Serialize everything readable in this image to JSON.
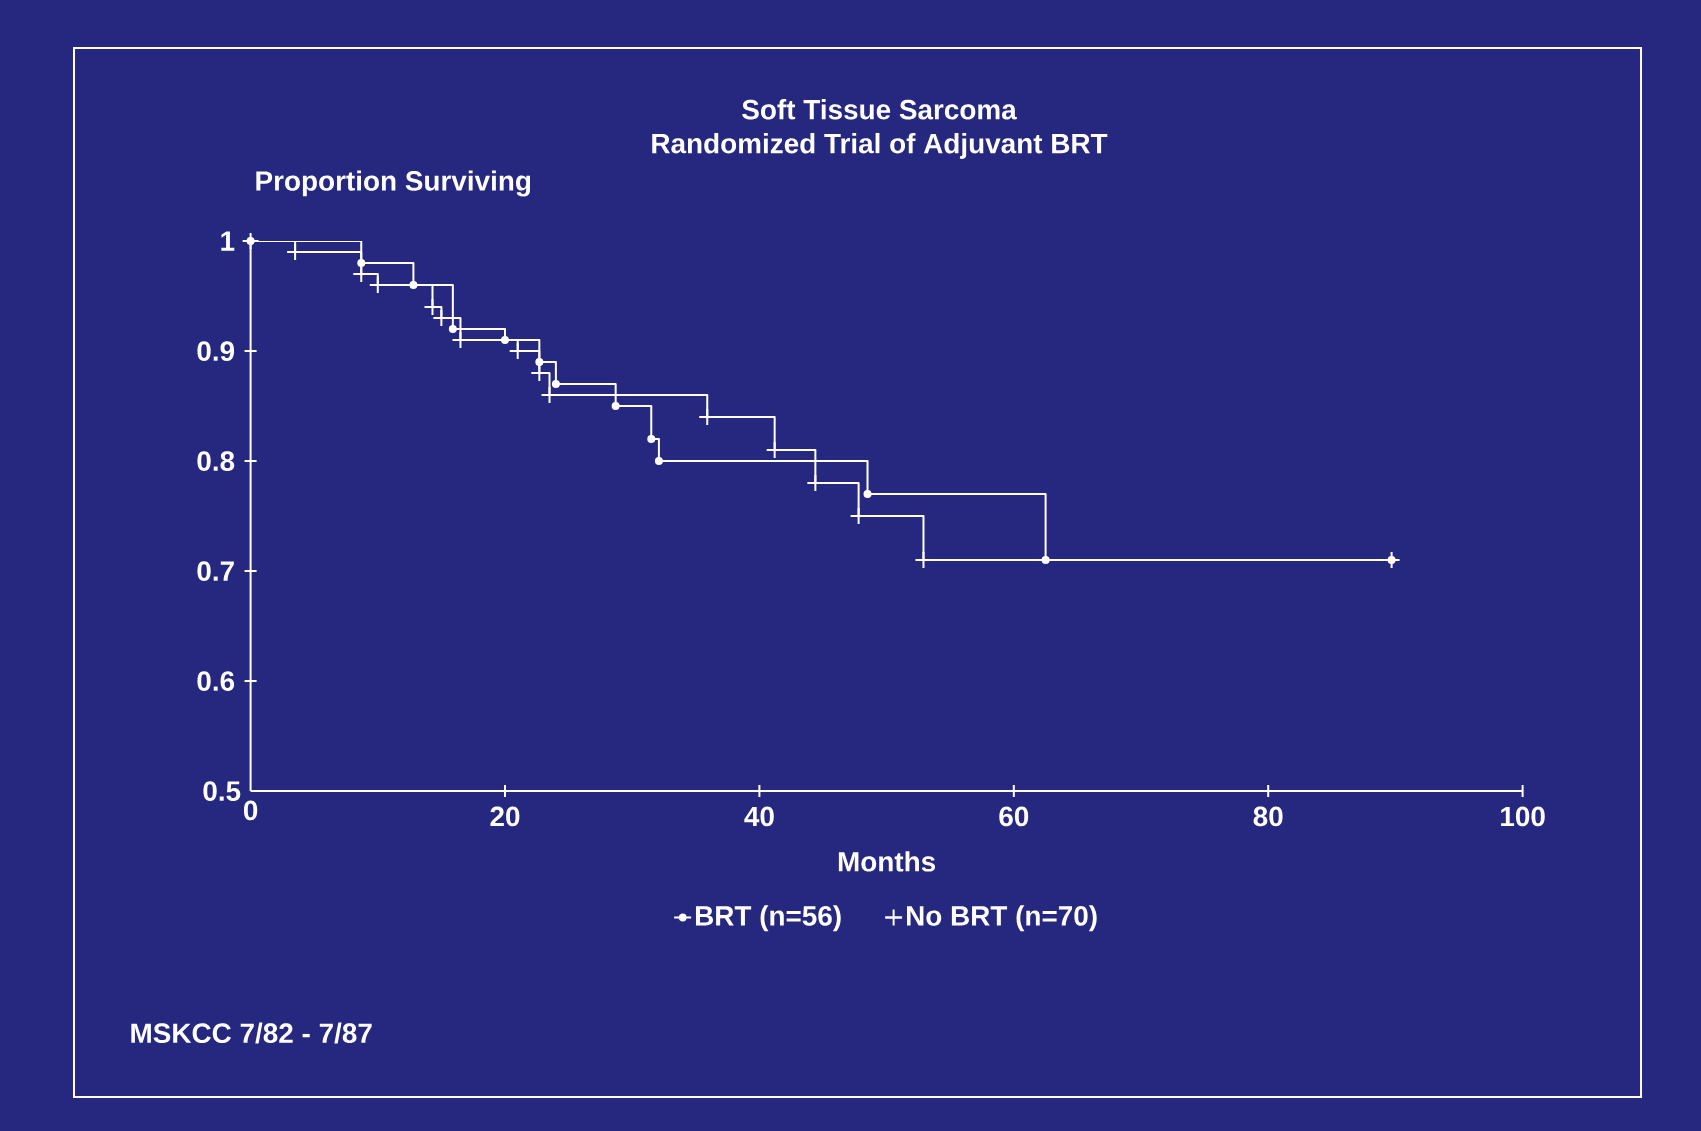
{
  "chart_data": {
    "type": "step",
    "title": "Soft Tissue Sarcoma",
    "subtitle": "Randomized Trial of Adjuvant BRT",
    "xlabel": "Months",
    "ylabel": "Proportion Surviving",
    "series": [
      {
        "name": "BRT (n=56)",
        "color": "#ffffff",
        "marker": "circle",
        "x": [
          0,
          8.7,
          12.8,
          15.9,
          20.0,
          22.7,
          24.0,
          28.7,
          31.5,
          32.1,
          48.5,
          62.5,
          89.7
        ],
        "values": [
          1.0,
          0.98,
          0.96,
          0.92,
          0.91,
          0.89,
          0.87,
          0.85,
          0.82,
          0.8,
          0.77,
          0.71,
          0.71
        ]
      },
      {
        "name": "No BRT (n=70)",
        "color": "#ffffff",
        "marker": "cross",
        "x": [
          0,
          3.5,
          8.7,
          10.0,
          14.3,
          15.0,
          16.5,
          21.0,
          22.7,
          23.5,
          35.9,
          41.2,
          44.4,
          47.8,
          52.9,
          89.7
        ],
        "values": [
          1.0,
          0.99,
          0.97,
          0.96,
          0.94,
          0.93,
          0.91,
          0.9,
          0.88,
          0.86,
          0.84,
          0.81,
          0.78,
          0.75,
          0.71,
          0.71
        ]
      }
    ],
    "xlim": [
      0,
      100
    ],
    "xticks": [
      0,
      20,
      40,
      60,
      80,
      100
    ],
    "ylim": [
      0.5,
      1
    ],
    "yticks": [
      0.5,
      0.6,
      0.7,
      0.8,
      0.9,
      1
    ],
    "legend": "bottom",
    "grid": false,
    "annotations": [
      "MSKCC 7/82 - 7/87"
    ]
  }
}
